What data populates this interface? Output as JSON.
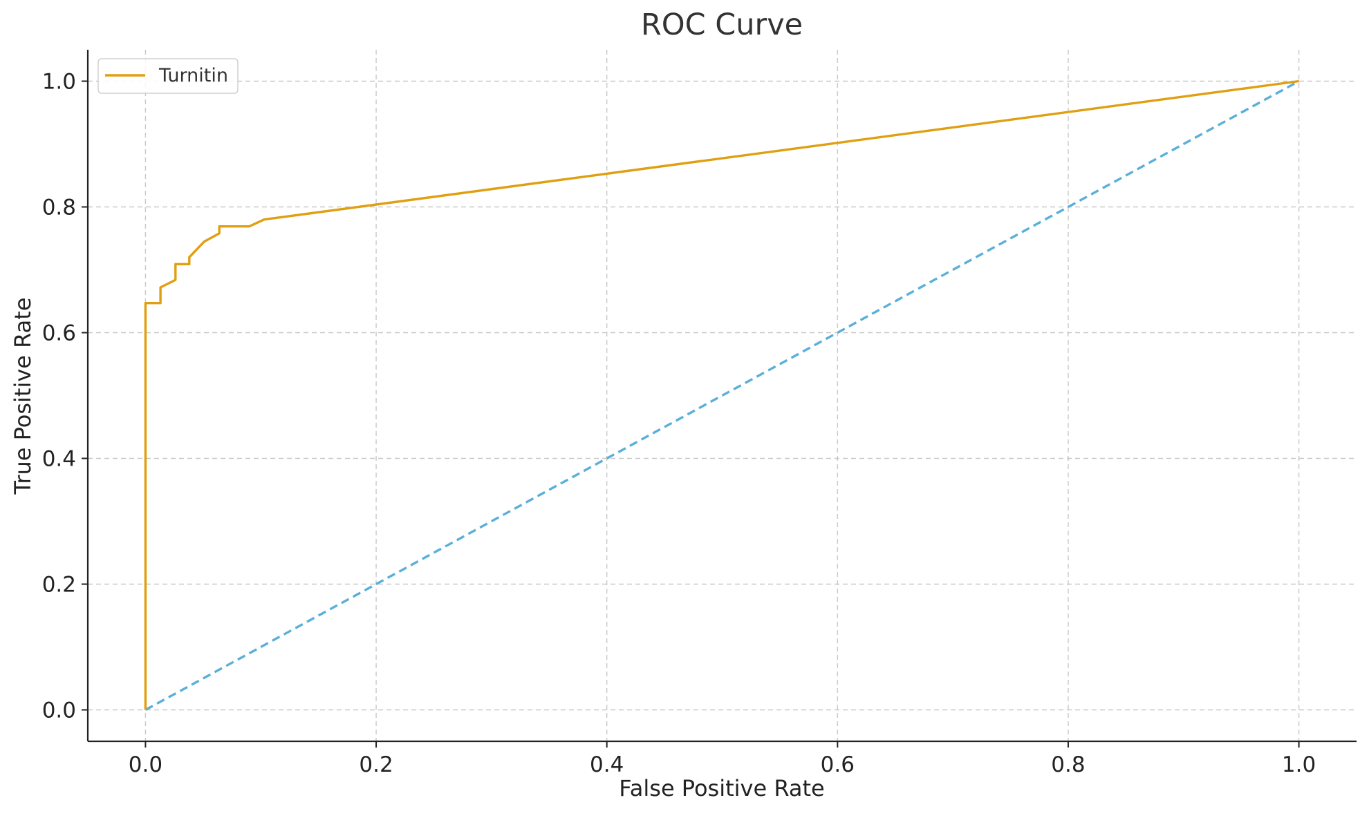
{
  "chart_data": {
    "type": "line",
    "title": "ROC Curve",
    "xlabel": "False Positive Rate",
    "ylabel": "True Positive Rate",
    "xlim": [
      -0.05,
      1.05
    ],
    "ylim": [
      -0.05,
      1.05
    ],
    "xticks": [
      0.0,
      0.2,
      0.4,
      0.6,
      0.8,
      1.0
    ],
    "yticks": [
      0.0,
      0.2,
      0.4,
      0.6,
      0.8,
      1.0
    ],
    "xtick_labels": [
      "0.0",
      "0.2",
      "0.4",
      "0.6",
      "0.8",
      "1.0"
    ],
    "ytick_labels": [
      "0.0",
      "0.2",
      "0.4",
      "0.6",
      "0.8",
      "1.0"
    ],
    "grid": true,
    "legend_position": "top-left",
    "series": [
      {
        "name": "Turnitin",
        "color": "#E09F10",
        "style": "solid",
        "x": [
          0.0,
          0.0,
          0.013,
          0.013,
          0.026,
          0.026,
          0.038,
          0.038,
          0.051,
          0.064,
          0.064,
          0.09,
          0.103,
          1.0
        ],
        "y": [
          0.0,
          0.647,
          0.647,
          0.672,
          0.684,
          0.709,
          0.709,
          0.72,
          0.745,
          0.758,
          0.769,
          0.769,
          0.78,
          1.0
        ]
      },
      {
        "color": "#5AAFD9",
        "style": "dashed",
        "x": [
          0.0,
          1.0
        ],
        "y": [
          0.0,
          1.0
        ]
      }
    ]
  }
}
